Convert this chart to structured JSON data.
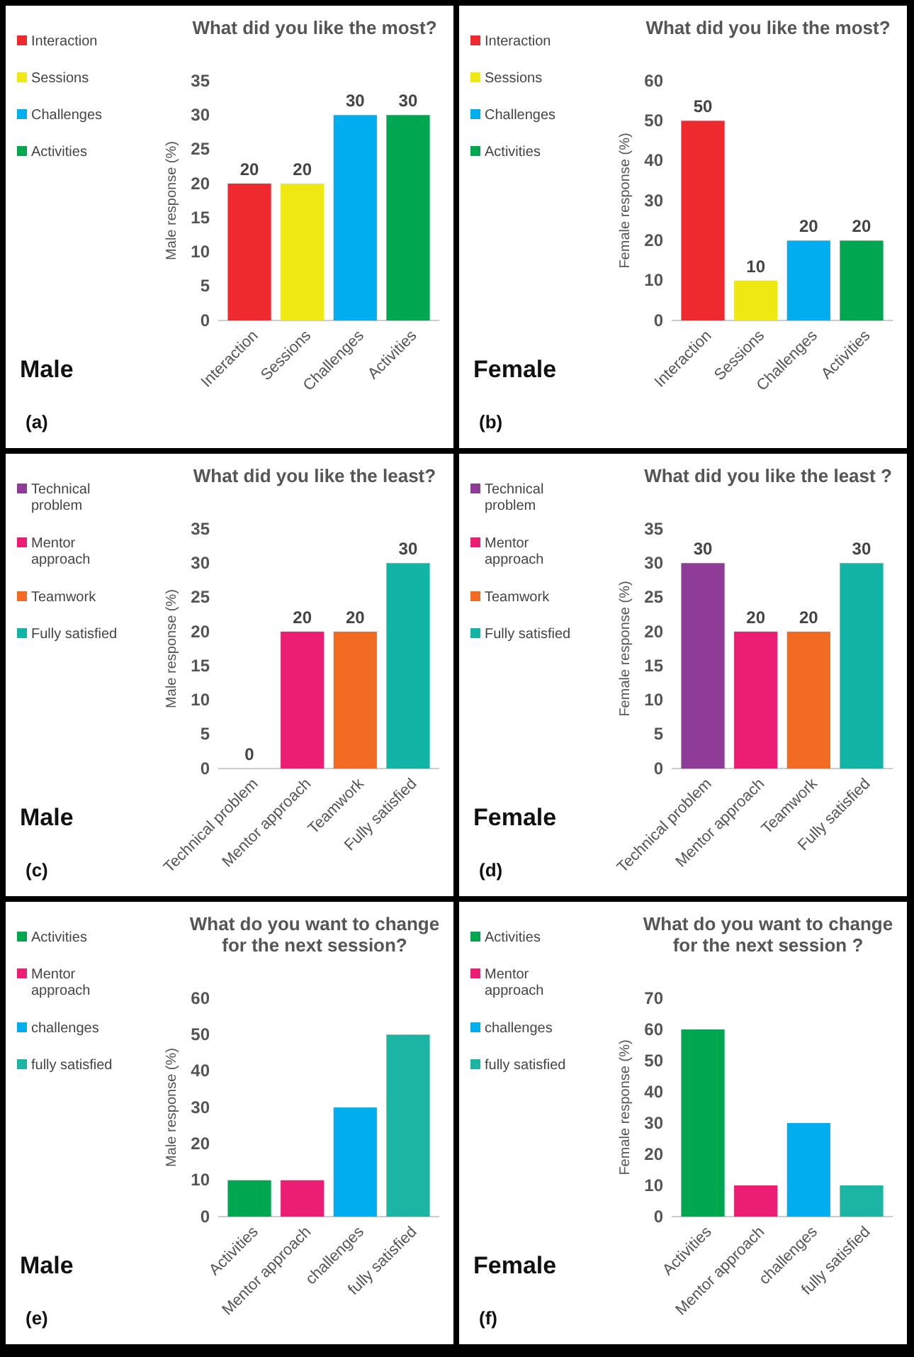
{
  "chart_data": [
    {
      "type": "bar",
      "stacked": true,
      "title": "What did you like the most?",
      "ylabel": "Male response (%)",
      "categories": [
        "Interaction",
        "Sessions",
        "Challenges",
        "Activities"
      ],
      "series": [
        {
          "name": "Interaction",
          "color": "#ee2a2f",
          "values": [
            20,
            null,
            null,
            null
          ]
        },
        {
          "name": "Sessions",
          "color": "#f0e813",
          "values": [
            null,
            20,
            null,
            null
          ]
        },
        {
          "name": "Challenges",
          "color": "#00aeef",
          "values": [
            null,
            null,
            30,
            null
          ]
        },
        {
          "name": "Activities",
          "color": "#00a650",
          "values": [
            null,
            null,
            null,
            30
          ]
        }
      ],
      "ylim": [
        0,
        35
      ],
      "yticks": [
        0,
        5,
        10,
        15,
        20,
        25,
        30,
        35
      ],
      "data_labels": true,
      "legend": "left",
      "annotations": [
        "Male",
        "(a)"
      ]
    },
    {
      "type": "bar",
      "stacked": true,
      "title": "What did you like the most?",
      "ylabel": "Female response (%)",
      "categories": [
        "Interaction",
        "Sessions",
        "Challenges",
        "Activities"
      ],
      "series": [
        {
          "name": "Interaction",
          "color": "#ee2a2f",
          "values": [
            50,
            null,
            null,
            null
          ]
        },
        {
          "name": "Sessions",
          "color": "#f0e813",
          "values": [
            null,
            10,
            null,
            null
          ]
        },
        {
          "name": "Challenges",
          "color": "#00aeef",
          "values": [
            null,
            null,
            20,
            null
          ]
        },
        {
          "name": "Activities",
          "color": "#00a650",
          "values": [
            null,
            null,
            null,
            20
          ]
        }
      ],
      "ylim": [
        0,
        60
      ],
      "yticks": [
        0,
        10,
        20,
        30,
        40,
        50,
        60
      ],
      "data_labels": true,
      "legend": "left",
      "annotations": [
        "Female",
        "(b)"
      ]
    },
    {
      "type": "bar",
      "stacked": true,
      "title": "What did you like the least?",
      "ylabel": "Male response (%)",
      "categories": [
        "Technical problem",
        "Mentor approach",
        "Teamwork",
        "Fully satisfied"
      ],
      "series": [
        {
          "name": "Technical problem",
          "color": "#8e3c97",
          "values": [
            0,
            null,
            null,
            null
          ]
        },
        {
          "name": "Mentor approach",
          "color": "#ec1e73",
          "values": [
            null,
            20,
            null,
            null
          ]
        },
        {
          "name": "Teamwork",
          "color": "#f26b22",
          "values": [
            null,
            null,
            20,
            null
          ]
        },
        {
          "name": "Fully satisfied",
          "color": "#12b5a5",
          "values": [
            null,
            null,
            null,
            30
          ]
        }
      ],
      "ylim": [
        0,
        35
      ],
      "yticks": [
        0,
        5,
        10,
        15,
        20,
        25,
        30,
        35
      ],
      "data_labels": true,
      "legend": "left",
      "annotations": [
        "Male",
        "(c)"
      ]
    },
    {
      "type": "bar",
      "stacked": true,
      "title": "What did you like the least ?",
      "ylabel": "Female response (%)",
      "categories": [
        "Technical problem",
        "Mentor approach",
        "Teamwork",
        "Fully satisfied"
      ],
      "series": [
        {
          "name": "Technical problem",
          "color": "#8e3c97",
          "values": [
            30,
            null,
            null,
            null
          ]
        },
        {
          "name": "Mentor approach",
          "color": "#ec1e73",
          "values": [
            null,
            20,
            null,
            null
          ]
        },
        {
          "name": "Teamwork",
          "color": "#f26b22",
          "values": [
            null,
            null,
            20,
            null
          ]
        },
        {
          "name": "Fully satisfied",
          "color": "#12b5a5",
          "values": [
            null,
            null,
            null,
            30
          ]
        }
      ],
      "ylim": [
        0,
        35
      ],
      "yticks": [
        0,
        5,
        10,
        15,
        20,
        25,
        30,
        35
      ],
      "data_labels": true,
      "legend": "left",
      "annotations": [
        "Female",
        "(d)"
      ]
    },
    {
      "type": "bar",
      "stacked": true,
      "title": "What do you want to change for the next session?",
      "ylabel": "Male response (%)",
      "categories": [
        "Activities",
        "Mentor approach",
        "challenges",
        "fully satisfied"
      ],
      "series": [
        {
          "name": "Activities",
          "color": "#00a650",
          "values": [
            10,
            null,
            null,
            null
          ]
        },
        {
          "name": "Mentor approach",
          "color": "#ec1e73",
          "values": [
            null,
            10,
            null,
            null
          ]
        },
        {
          "name": "challenges",
          "color": "#00aeef",
          "values": [
            null,
            null,
            30,
            null
          ]
        },
        {
          "name": "fully satisfied",
          "color": "#1cb5a3",
          "values": [
            null,
            null,
            null,
            50
          ]
        }
      ],
      "ylim": [
        0,
        60
      ],
      "yticks": [
        0,
        10,
        20,
        30,
        40,
        50,
        60
      ],
      "legend": "left",
      "annotations": [
        "Male",
        "(e)"
      ]
    },
    {
      "type": "bar",
      "stacked": true,
      "title": "What do you want to change for the next session ?",
      "ylabel": "Female response (%)",
      "categories": [
        "Activities",
        "Mentor approach",
        "challenges",
        "fully satisfied"
      ],
      "series": [
        {
          "name": "Activities",
          "color": "#00a650",
          "values": [
            60,
            null,
            null,
            null
          ]
        },
        {
          "name": "Mentor approach",
          "color": "#ec1e73",
          "values": [
            null,
            10,
            null,
            null
          ]
        },
        {
          "name": "challenges",
          "color": "#00aeef",
          "values": [
            null,
            null,
            30,
            null
          ]
        },
        {
          "name": "fully satisfied",
          "color": "#1cb5a3",
          "values": [
            null,
            null,
            null,
            10
          ]
        }
      ],
      "ylim": [
        0,
        70
      ],
      "yticks": [
        0,
        10,
        20,
        30,
        40,
        50,
        60,
        70
      ],
      "legend": "left",
      "annotations": [
        "Female",
        "(f)"
      ]
    }
  ]
}
